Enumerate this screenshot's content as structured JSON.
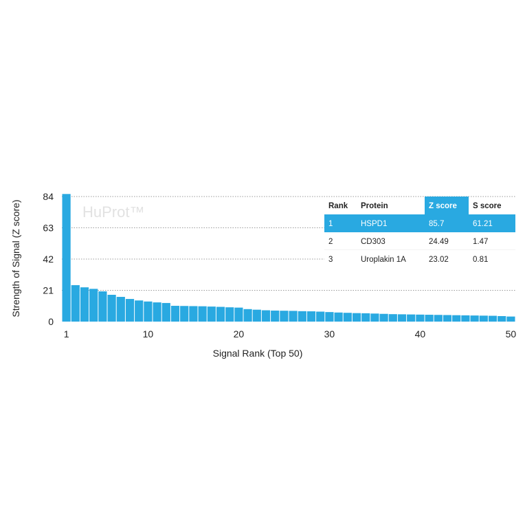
{
  "colors": {
    "bar": "#29a9e1",
    "highlight": "#29a9e1",
    "grid": "#9a9a9a"
  },
  "chart_data": {
    "type": "bar",
    "xlabel": "Signal Rank (Top 50)",
    "ylabel": "Strength of Signal (Z score)",
    "watermark": "HuProt™",
    "ylim": [
      0,
      84
    ],
    "yticks": [
      0,
      21,
      42,
      63,
      84
    ],
    "xticks": [
      1,
      10,
      20,
      30,
      40,
      50
    ],
    "grid": "horizontal dotted",
    "x": [
      1,
      2,
      3,
      4,
      5,
      6,
      7,
      8,
      9,
      10,
      11,
      12,
      13,
      14,
      15,
      16,
      17,
      18,
      19,
      20,
      21,
      22,
      23,
      24,
      25,
      26,
      27,
      28,
      29,
      30,
      31,
      32,
      33,
      34,
      35,
      36,
      37,
      38,
      39,
      40,
      41,
      42,
      43,
      44,
      45,
      46,
      47,
      48,
      49,
      50
    ],
    "values": [
      85.7,
      24.49,
      23.02,
      22.0,
      20.3,
      18.0,
      16.6,
      15.2,
      14.2,
      13.5,
      12.9,
      12.5,
      10.6,
      10.5,
      10.4,
      10.3,
      10.1,
      9.9,
      9.6,
      9.4,
      8.4,
      8.0,
      7.6,
      7.4,
      7.3,
      7.2,
      7.0,
      6.9,
      6.7,
      6.4,
      6.1,
      5.9,
      5.7,
      5.6,
      5.4,
      5.2,
      5.0,
      4.9,
      4.8,
      4.7,
      4.6,
      4.5,
      4.4,
      4.3,
      4.2,
      4.1,
      4.0,
      3.9,
      3.7,
      3.4
    ],
    "table": {
      "columns": [
        "Rank",
        "Protein",
        "Z score",
        "S score"
      ],
      "highlight_columns": [
        2
      ],
      "rows": [
        [
          "1",
          "HSPD1",
          "85.7",
          "61.21"
        ],
        [
          "2",
          "CD303",
          "24.49",
          "1.47"
        ],
        [
          "3",
          "Uroplakin 1A",
          "23.02",
          "0.81"
        ]
      ],
      "highlight_row": 0
    }
  }
}
